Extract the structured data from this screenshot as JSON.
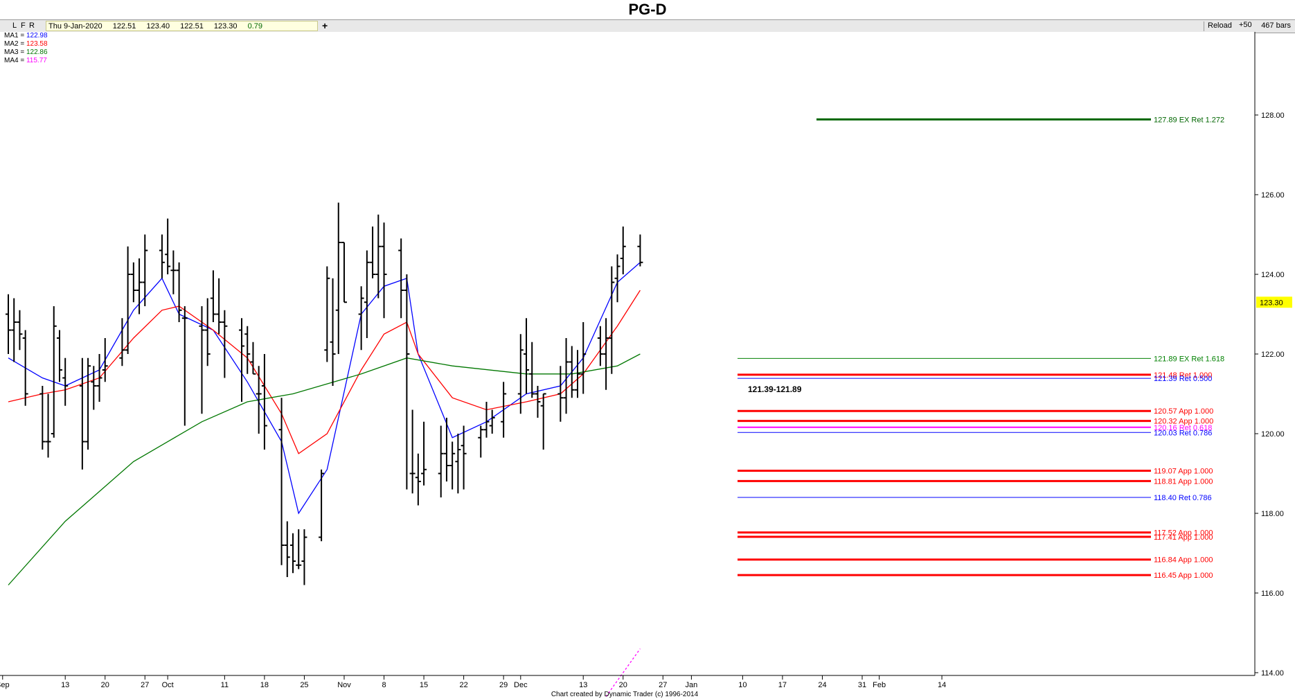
{
  "title": "PG-D",
  "toolbar": {
    "buttons": [
      "L",
      "F",
      "R"
    ],
    "quote": {
      "date": "Thu 9-Jan-2020",
      "open": "122.51",
      "high": "123.40",
      "low": "122.51",
      "close": "123.30",
      "change": "0.79"
    },
    "plus_label": "+",
    "reload_label": "Reload",
    "plus50_label": "+50",
    "bars_label": "467 bars"
  },
  "ma_legend": [
    {
      "label": "MA1 = ",
      "value": "122.98",
      "color": "#0000ff"
    },
    {
      "label": "MA2 = ",
      "value": "123.58",
      "color": "#ff0000"
    },
    {
      "label": "MA3 = ",
      "value": "122.86",
      "color": "#007700"
    },
    {
      "label": "MA4 = ",
      "value": "115.77",
      "color": "#ff00ff"
    }
  ],
  "footer": "Chart created by Dynamic Trader  (c) 1996-2014",
  "chart_data": {
    "type": "ohlc",
    "title": "PG-D",
    "x_type": "date",
    "x_start": "2019-09-03",
    "x_end": "2020-02-18",
    "ylim": [
      113.5,
      129.5
    ],
    "y_ticks": [
      114.0,
      116.0,
      118.0,
      120.0,
      122.0,
      124.0,
      126.0,
      128.0
    ],
    "x_ticks": [
      "Sep",
      "13",
      "20",
      "27",
      "Oct",
      "11",
      "18",
      "25",
      "Nov",
      "8",
      "15",
      "22",
      "29",
      "Dec",
      "13",
      "20",
      "27",
      "Jan",
      "10",
      "17",
      "24",
      "31",
      "Feb",
      "14"
    ],
    "x_tick_dates": [
      "2019-09-02",
      "2019-09-13",
      "2019-09-20",
      "2019-09-27",
      "2019-10-01",
      "2019-10-11",
      "2019-10-18",
      "2019-10-25",
      "2019-11-01",
      "2019-11-08",
      "2019-11-15",
      "2019-11-22",
      "2019-11-29",
      "2019-12-02",
      "2019-12-13",
      "2019-12-20",
      "2019-12-27",
      "2020-01-01",
      "2020-01-10",
      "2020-01-17",
      "2020-01-24",
      "2020-01-31",
      "2020-02-03",
      "2020-02-14"
    ],
    "last_price": "123.30",
    "ohlc": [
      {
        "date": "2019-09-03",
        "o": 123.0,
        "h": 123.5,
        "l": 122.0,
        "c": 122.6
      },
      {
        "date": "2019-09-04",
        "o": 122.6,
        "h": 123.4,
        "l": 121.8,
        "c": 122.8
      },
      {
        "date": "2019-09-05",
        "o": 122.8,
        "h": 123.1,
        "l": 122.1,
        "c": 122.5
      },
      {
        "date": "2019-09-06",
        "o": 122.4,
        "h": 122.6,
        "l": 120.7,
        "c": 121.0
      },
      {
        "date": "2019-09-09",
        "o": 121.0,
        "h": 121.2,
        "l": 119.6,
        "c": 119.8
      },
      {
        "date": "2019-09-10",
        "o": 119.8,
        "h": 121.0,
        "l": 119.4,
        "c": 119.8
      },
      {
        "date": "2019-09-11",
        "o": 120.0,
        "h": 123.2,
        "l": 119.9,
        "c": 122.7
      },
      {
        "date": "2019-09-12",
        "o": 122.4,
        "h": 122.6,
        "l": 121.3,
        "c": 121.6
      },
      {
        "date": "2019-09-13",
        "o": 121.4,
        "h": 121.9,
        "l": 120.7,
        "c": 121.2
      },
      {
        "date": "2019-09-16",
        "o": 121.2,
        "h": 121.9,
        "l": 119.1,
        "c": 119.8
      },
      {
        "date": "2019-09-17",
        "o": 119.8,
        "h": 121.9,
        "l": 119.6,
        "c": 121.7
      },
      {
        "date": "2019-09-18",
        "o": 121.3,
        "h": 121.7,
        "l": 120.6,
        "c": 121.2
      },
      {
        "date": "2019-09-19",
        "o": 121.2,
        "h": 122.0,
        "l": 120.8,
        "c": 121.4
      },
      {
        "date": "2019-09-20",
        "o": 121.6,
        "h": 122.4,
        "l": 121.3,
        "c": 121.7
      },
      {
        "date": "2019-09-23",
        "o": 121.9,
        "h": 122.9,
        "l": 121.7,
        "c": 122.1
      },
      {
        "date": "2019-09-24",
        "o": 122.1,
        "h": 124.7,
        "l": 122.0,
        "c": 124.0
      },
      {
        "date": "2019-09-25",
        "o": 124.0,
        "h": 124.3,
        "l": 123.3,
        "c": 123.6
      },
      {
        "date": "2019-09-26",
        "o": 123.6,
        "h": 124.4,
        "l": 123.0,
        "c": 123.8
      },
      {
        "date": "2019-09-27",
        "o": 123.8,
        "h": 125.0,
        "l": 123.2,
        "c": 124.6
      },
      {
        "date": "2019-09-30",
        "o": 124.6,
        "h": 125.0,
        "l": 123.9,
        "c": 124.3
      },
      {
        "date": "2019-10-01",
        "o": 124.5,
        "h": 125.4,
        "l": 124.0,
        "c": 124.2
      },
      {
        "date": "2019-10-02",
        "o": 124.1,
        "h": 124.6,
        "l": 123.5,
        "c": 124.1
      },
      {
        "date": "2019-10-03",
        "o": 124.1,
        "h": 124.3,
        "l": 122.8,
        "c": 123.1
      },
      {
        "date": "2019-10-04",
        "o": 122.9,
        "h": 123.2,
        "l": 120.2,
        "c": 122.9
      },
      {
        "date": "2019-10-07",
        "o": 122.7,
        "h": 123.2,
        "l": 120.5,
        "c": 122.6
      },
      {
        "date": "2019-10-08",
        "o": 122.6,
        "h": 123.4,
        "l": 121.7,
        "c": 122.0
      },
      {
        "date": "2019-10-09",
        "o": 123.4,
        "h": 124.1,
        "l": 122.8,
        "c": 123.0
      },
      {
        "date": "2019-10-10",
        "o": 123.0,
        "h": 123.9,
        "l": 122.5,
        "c": 122.8
      },
      {
        "date": "2019-10-11",
        "o": 122.8,
        "h": 123.1,
        "l": 121.4,
        "c": 122.7
      },
      {
        "date": "2019-10-14",
        "o": 122.6,
        "h": 122.9,
        "l": 120.8,
        "c": 122.2
      },
      {
        "date": "2019-10-15",
        "o": 122.5,
        "h": 122.7,
        "l": 121.5,
        "c": 122.0
      },
      {
        "date": "2019-10-16",
        "o": 121.8,
        "h": 122.3,
        "l": 121.5,
        "c": 121.5
      },
      {
        "date": "2019-10-17",
        "o": 121.0,
        "h": 121.7,
        "l": 120.0,
        "c": 121.0
      },
      {
        "date": "2019-10-18",
        "o": 121.2,
        "h": 122.0,
        "l": 119.6,
        "c": 120.2
      },
      {
        "date": "2019-10-21",
        "o": 120.1,
        "h": 120.9,
        "l": 116.7,
        "c": 117.2
      },
      {
        "date": "2019-10-22",
        "o": 117.2,
        "h": 117.8,
        "l": 116.4,
        "c": 116.9
      },
      {
        "date": "2019-10-23",
        "o": 117.2,
        "h": 117.5,
        "l": 116.5,
        "c": 116.8
      },
      {
        "date": "2019-10-24",
        "o": 116.7,
        "h": 117.6,
        "l": 116.6,
        "c": 116.7
      },
      {
        "date": "2019-10-25",
        "o": 116.8,
        "h": 117.6,
        "l": 116.2,
        "c": 117.4
      },
      {
        "date": "2019-10-28",
        "o": 117.4,
        "h": 119.1,
        "l": 117.3,
        "c": 119.0
      },
      {
        "date": "2019-10-29",
        "o": 122.1,
        "h": 124.2,
        "l": 121.8,
        "c": 123.9
      },
      {
        "date": "2019-10-30",
        "o": 122.3,
        "h": 123.9,
        "l": 121.2,
        "c": 122.0
      },
      {
        "date": "2019-10-31",
        "o": 123.1,
        "h": 125.8,
        "l": 122.0,
        "c": 124.8
      },
      {
        "date": "2019-11-01",
        "o": 124.8,
        "h": 124.8,
        "l": 123.3,
        "c": 123.3
      },
      {
        "date": "2019-11-04",
        "o": 123.0,
        "h": 123.7,
        "l": 122.1,
        "c": 123.4
      },
      {
        "date": "2019-11-05",
        "o": 123.3,
        "h": 124.6,
        "l": 122.4,
        "c": 124.3
      },
      {
        "date": "2019-11-06",
        "o": 124.3,
        "h": 125.2,
        "l": 123.9,
        "c": 124.0
      },
      {
        "date": "2019-11-07",
        "o": 124.0,
        "h": 125.5,
        "l": 123.4,
        "c": 124.7
      },
      {
        "date": "2019-11-08",
        "o": 124.7,
        "h": 125.3,
        "l": 122.9,
        "c": 124.0
      },
      {
        "date": "2019-11-11",
        "o": 124.6,
        "h": 124.9,
        "l": 122.9,
        "c": 123.6
      },
      {
        "date": "2019-11-12",
        "o": 123.6,
        "h": 124.0,
        "l": 118.6,
        "c": 122.0
      },
      {
        "date": "2019-11-13",
        "o": 119.0,
        "h": 120.6,
        "l": 118.5,
        "c": 119.0
      },
      {
        "date": "2019-11-14",
        "o": 118.9,
        "h": 119.5,
        "l": 118.2,
        "c": 118.8
      },
      {
        "date": "2019-11-15",
        "o": 119.0,
        "h": 120.3,
        "l": 118.7,
        "c": 119.1
      },
      {
        "date": "2019-11-18",
        "o": 119.0,
        "h": 120.2,
        "l": 118.4,
        "c": 119.5
      },
      {
        "date": "2019-11-19",
        "o": 119.5,
        "h": 120.4,
        "l": 118.8,
        "c": 119.2
      },
      {
        "date": "2019-11-20",
        "o": 119.2,
        "h": 119.8,
        "l": 118.6,
        "c": 119.5
      },
      {
        "date": "2019-11-21",
        "o": 119.3,
        "h": 120.0,
        "l": 118.5,
        "c": 119.6
      },
      {
        "date": "2019-11-22",
        "o": 119.7,
        "h": 120.2,
        "l": 118.6,
        "c": 119.5
      },
      {
        "date": "2019-11-25",
        "o": 119.9,
        "h": 120.2,
        "l": 119.4,
        "c": 120.1
      },
      {
        "date": "2019-11-26",
        "o": 120.1,
        "h": 120.8,
        "l": 119.9,
        "c": 120.3
      },
      {
        "date": "2019-11-27",
        "o": 120.2,
        "h": 120.6,
        "l": 120.0,
        "c": 120.4
      },
      {
        "date": "2019-11-29",
        "o": 120.3,
        "h": 121.3,
        "l": 119.9,
        "c": 121.0
      },
      {
        "date": "2019-12-02",
        "o": 121.0,
        "h": 122.5,
        "l": 120.5,
        "c": 122.1
      },
      {
        "date": "2019-12-03",
        "o": 122.0,
        "h": 122.9,
        "l": 121.0,
        "c": 121.6
      },
      {
        "date": "2019-12-04",
        "o": 121.5,
        "h": 122.3,
        "l": 120.9,
        "c": 121.0
      },
      {
        "date": "2019-12-05",
        "o": 121.0,
        "h": 121.2,
        "l": 120.4,
        "c": 120.8
      },
      {
        "date": "2019-12-06",
        "o": 120.7,
        "h": 121.0,
        "l": 119.6,
        "c": 121.0
      },
      {
        "date": "2019-12-09",
        "o": 121.0,
        "h": 121.7,
        "l": 120.3,
        "c": 120.9
      },
      {
        "date": "2019-12-10",
        "o": 120.9,
        "h": 122.4,
        "l": 120.5,
        "c": 121.8
      },
      {
        "date": "2019-12-11",
        "o": 121.8,
        "h": 122.2,
        "l": 120.9,
        "c": 121.1
      },
      {
        "date": "2019-12-12",
        "o": 121.1,
        "h": 122.1,
        "l": 120.9,
        "c": 121.5
      },
      {
        "date": "2019-12-13",
        "o": 121.5,
        "h": 122.8,
        "l": 121.0,
        "c": 122.0
      },
      {
        "date": "2019-12-16",
        "o": 122.4,
        "h": 122.7,
        "l": 121.7,
        "c": 122.0
      },
      {
        "date": "2019-12-17",
        "o": 122.0,
        "h": 122.9,
        "l": 121.1,
        "c": 122.4
      },
      {
        "date": "2019-12-18",
        "o": 122.4,
        "h": 124.2,
        "l": 121.5,
        "c": 123.8
      },
      {
        "date": "2019-12-19",
        "o": 123.9,
        "h": 124.5,
        "l": 123.3,
        "c": 124.2
      },
      {
        "date": "2019-12-20",
        "o": 124.4,
        "h": 125.2,
        "l": 124.0,
        "c": 124.7
      },
      {
        "date": "2019-12-23",
        "o": 124.7,
        "h": 125.0,
        "l": 124.2,
        "c": 124.3
      }
    ],
    "series": [
      {
        "name": "MA1",
        "color": "#0000ff",
        "points": [
          [
            0,
            121.9
          ],
          [
            4,
            121.4
          ],
          [
            8,
            121.2
          ],
          [
            12,
            121.6
          ],
          [
            16,
            123.1
          ],
          [
            19,
            123.9
          ],
          [
            22,
            123.0
          ],
          [
            26,
            122.6
          ],
          [
            30,
            121.3
          ],
          [
            34,
            119.8
          ],
          [
            37,
            118.0
          ],
          [
            40,
            119.1
          ],
          [
            44,
            123.0
          ],
          [
            48,
            123.7
          ],
          [
            50,
            123.9
          ],
          [
            52,
            122.0
          ],
          [
            56,
            119.9
          ],
          [
            60,
            120.3
          ],
          [
            64,
            121.0
          ],
          [
            68,
            121.2
          ],
          [
            72,
            121.9
          ],
          [
            76,
            123.8
          ],
          [
            80,
            124.3
          ]
        ]
      },
      {
        "name": "MA2",
        "color": "#ff0000",
        "points": [
          [
            0,
            120.8
          ],
          [
            4,
            121.0
          ],
          [
            8,
            121.1
          ],
          [
            12,
            121.4
          ],
          [
            16,
            122.4
          ],
          [
            19,
            123.1
          ],
          [
            22,
            123.2
          ],
          [
            26,
            122.6
          ],
          [
            30,
            121.9
          ],
          [
            34,
            120.5
          ],
          [
            37,
            119.5
          ],
          [
            40,
            120.0
          ],
          [
            44,
            121.6
          ],
          [
            48,
            122.5
          ],
          [
            50,
            122.8
          ],
          [
            52,
            122.0
          ],
          [
            56,
            120.9
          ],
          [
            60,
            120.6
          ],
          [
            64,
            120.8
          ],
          [
            68,
            121.0
          ],
          [
            72,
            121.5
          ],
          [
            76,
            122.7
          ],
          [
            80,
            123.6
          ]
        ]
      },
      {
        "name": "MA3",
        "color": "#007700",
        "points": [
          [
            0,
            116.2
          ],
          [
            8,
            117.8
          ],
          [
            16,
            119.3
          ],
          [
            24,
            120.3
          ],
          [
            30,
            120.8
          ],
          [
            36,
            121.0
          ],
          [
            44,
            121.5
          ],
          [
            50,
            121.9
          ],
          [
            56,
            121.7
          ],
          [
            64,
            121.5
          ],
          [
            70,
            121.5
          ],
          [
            76,
            121.7
          ],
          [
            80,
            122.0
          ]
        ]
      },
      {
        "name": "MA4",
        "color": "#ff00ff",
        "points": [
          [
            74,
            113.4
          ],
          [
            80,
            114.6
          ]
        ]
      }
    ],
    "levels": [
      {
        "price": 127.89,
        "label": "127.89 EX Ret 1.272",
        "color": "#006600"
      },
      {
        "price": 121.89,
        "label": "121.89 EX Ret 1.618",
        "color": "#008000"
      },
      {
        "price": 121.48,
        "label": "121.48 Ret 1.000",
        "color": "#ff0000"
      },
      {
        "price": 121.39,
        "label": "121.39 Ret 0.500",
        "color": "#0000ff"
      },
      {
        "price": 120.57,
        "label": "120.57 App 1.000",
        "color": "#ff0000"
      },
      {
        "price": 120.32,
        "label": "120.32 App 1.000",
        "color": "#ff0000"
      },
      {
        "price": 120.16,
        "label": "120.16 Ret 0.618",
        "color": "#ff00ff"
      },
      {
        "price": 120.03,
        "label": "120.03 Ret 0.786",
        "color": "#0000ff"
      },
      {
        "price": 119.07,
        "label": "119.07 App 1.000",
        "color": "#ff0000"
      },
      {
        "price": 118.81,
        "label": "118.81 App 1.000",
        "color": "#ff0000"
      },
      {
        "price": 118.4,
        "label": "118.40 Ret 0.786",
        "color": "#0000ff"
      },
      {
        "price": 117.52,
        "label": "117.52 App 1.000",
        "color": "#ff0000"
      },
      {
        "price": 117.41,
        "label": "117.41 App 1.000",
        "color": "#ff0000"
      },
      {
        "price": 116.84,
        "label": "116.84 App 1.000",
        "color": "#ff0000"
      },
      {
        "price": 116.45,
        "label": "116.45 App 1.000",
        "color": "#ff0000"
      }
    ],
    "zone_label": "121.39-121.89"
  }
}
